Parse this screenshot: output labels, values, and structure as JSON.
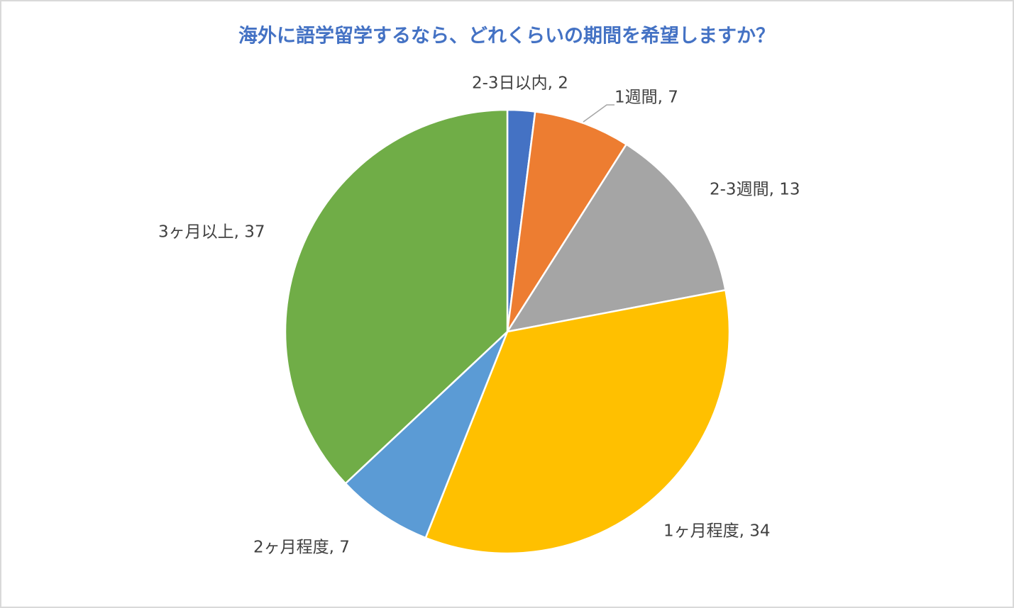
{
  "chart_data": {
    "type": "pie",
    "title": "海外に語学留学するなら、どれくらいの期間を希望しますか？",
    "values": [
      2,
      7,
      13,
      34,
      7,
      37
    ],
    "value_labels": [
      "2-3日以内, 2",
      "1週間, 7",
      "2-3週間, 13",
      "1ヶ月程度, 34",
      "2ヶ月程度, 7",
      "3ヶ月以上, 37"
    ],
    "colors": [
      "#4472c4",
      "#ed7d31",
      "#a5a5a5",
      "#ffc000",
      "#5b9bd5",
      "#70ad47"
    ]
  }
}
